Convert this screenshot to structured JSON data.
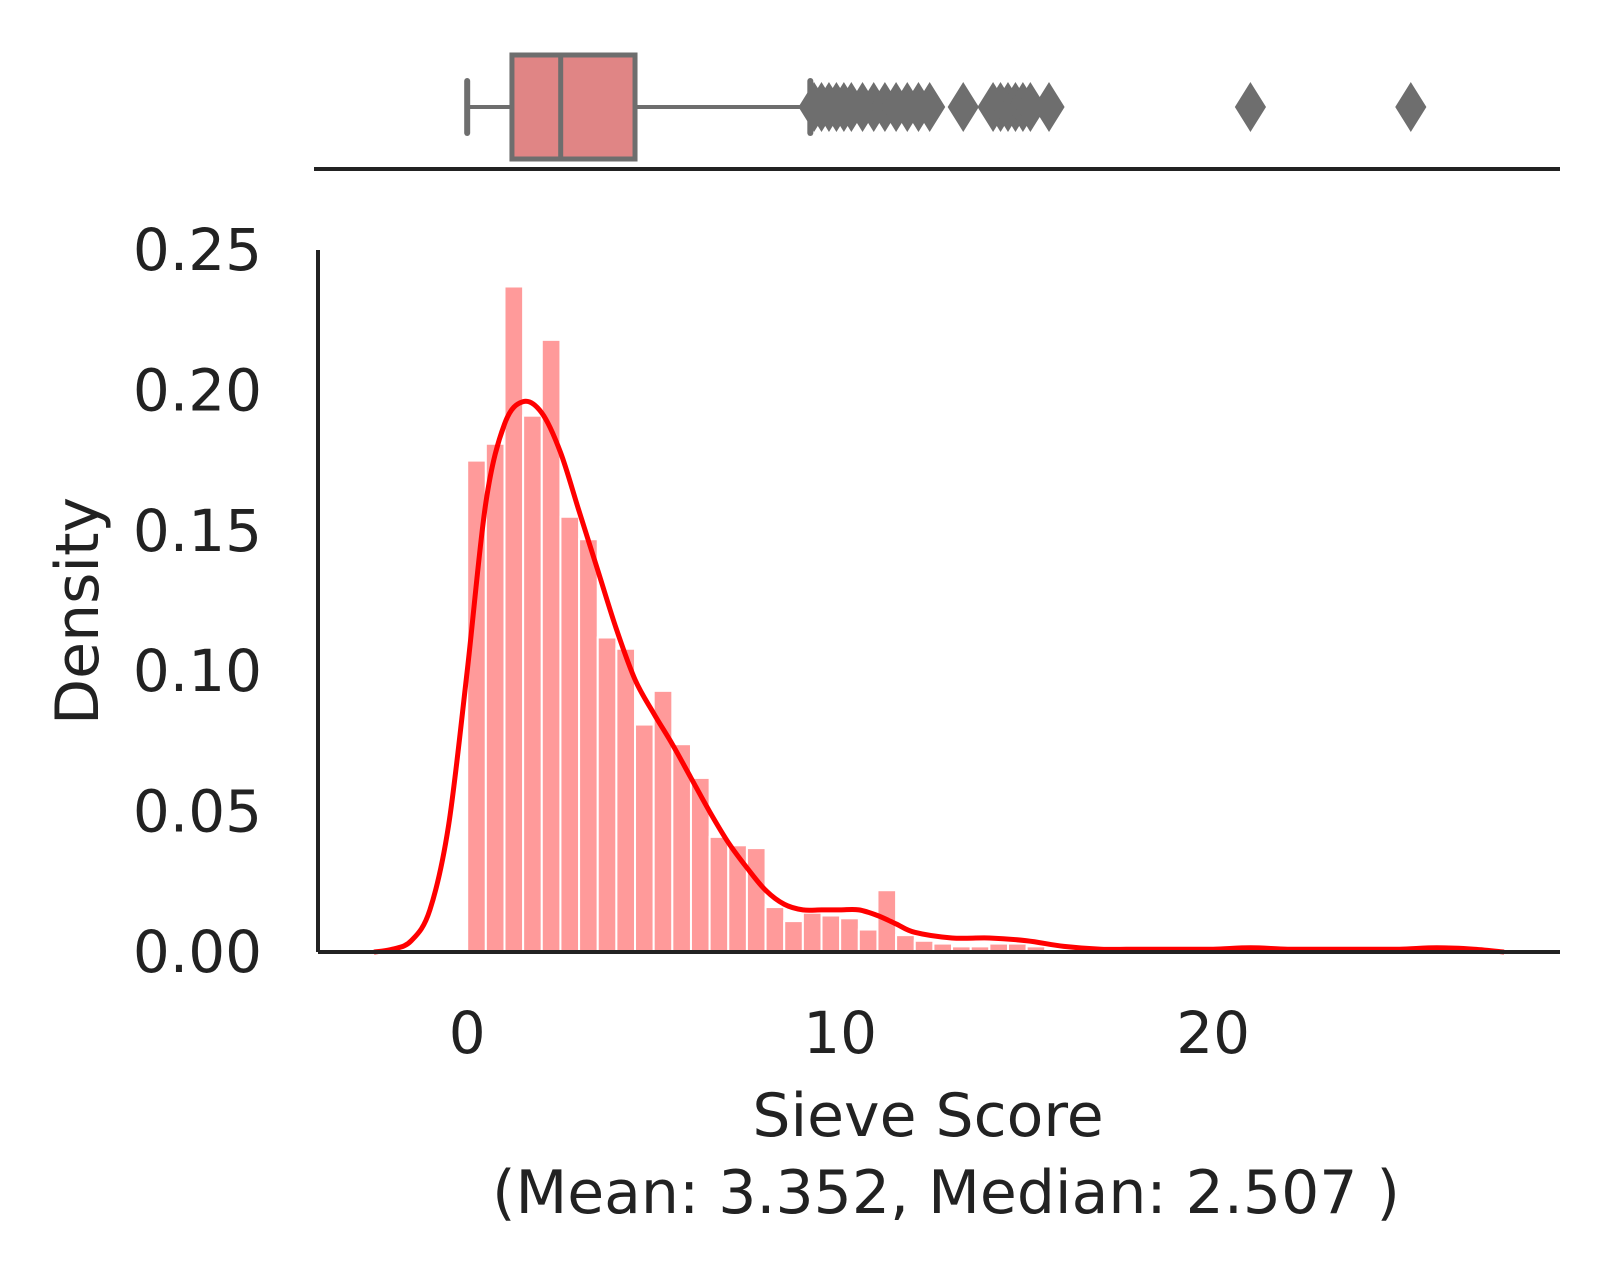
{
  "chart_data": {
    "type": "histogram",
    "title": "",
    "xlabel": "Sieve Score",
    "xlabel_stats": "(Mean: 3.352, Median: 2.507 )",
    "ylabel": "Density",
    "xlim": [
      -4,
      29.3
    ],
    "ylim": [
      0,
      0.25
    ],
    "x_ticks": [
      0,
      10,
      20
    ],
    "y_ticks": [
      "0.00",
      "0.05",
      "0.10",
      "0.15",
      "0.20",
      "0.25"
    ],
    "bar_color": "#ff9a9a",
    "kde_color": "#ff0000",
    "box_color": "#e08585",
    "box_edge_color": "#6e6e6e",
    "axis_color": "#222222",
    "histogram": {
      "bin_width": 0.5,
      "bins": [
        {
          "start": 0.0,
          "density": 0.175
        },
        {
          "start": 0.5,
          "density": 0.181
        },
        {
          "start": 1.0,
          "density": 0.237
        },
        {
          "start": 1.5,
          "density": 0.191
        },
        {
          "start": 2.0,
          "density": 0.218
        },
        {
          "start": 2.5,
          "density": 0.155
        },
        {
          "start": 3.0,
          "density": 0.147
        },
        {
          "start": 3.5,
          "density": 0.112
        },
        {
          "start": 4.0,
          "density": 0.108
        },
        {
          "start": 4.5,
          "density": 0.081
        },
        {
          "start": 5.0,
          "density": 0.093
        },
        {
          "start": 5.5,
          "density": 0.074
        },
        {
          "start": 6.0,
          "density": 0.062
        },
        {
          "start": 6.5,
          "density": 0.041
        },
        {
          "start": 7.0,
          "density": 0.038
        },
        {
          "start": 7.5,
          "density": 0.037
        },
        {
          "start": 8.0,
          "density": 0.016
        },
        {
          "start": 8.5,
          "density": 0.011
        },
        {
          "start": 9.0,
          "density": 0.014
        },
        {
          "start": 9.5,
          "density": 0.013
        },
        {
          "start": 10.0,
          "density": 0.012
        },
        {
          "start": 10.5,
          "density": 0.008
        },
        {
          "start": 11.0,
          "density": 0.022
        },
        {
          "start": 11.5,
          "density": 0.006
        },
        {
          "start": 12.0,
          "density": 0.004
        },
        {
          "start": 12.5,
          "density": 0.003
        },
        {
          "start": 13.0,
          "density": 0.002
        },
        {
          "start": 13.5,
          "density": 0.002
        },
        {
          "start": 14.0,
          "density": 0.003
        },
        {
          "start": 14.5,
          "density": 0.003
        },
        {
          "start": 15.0,
          "density": 0.002
        },
        {
          "start": 15.5,
          "density": 0.001
        }
      ]
    },
    "kde": {
      "x": [
        -2.5,
        -2.0,
        -1.5,
        -1.0,
        -0.5,
        0.0,
        0.5,
        1.0,
        1.5,
        2.0,
        2.5,
        3.0,
        3.5,
        4.0,
        4.5,
        5.0,
        5.5,
        6.0,
        6.5,
        7.0,
        7.5,
        8.0,
        8.5,
        9.0,
        9.5,
        10.0,
        10.5,
        11.0,
        11.5,
        12.0,
        13.0,
        14.0,
        15.0,
        16.0,
        17.0,
        18.0,
        19.0,
        20.0,
        21.0,
        22.0,
        23.0,
        24.0,
        25.0,
        26.0,
        27.0,
        27.8
      ],
      "y": [
        0.0,
        0.001,
        0.004,
        0.015,
        0.045,
        0.1,
        0.16,
        0.188,
        0.196,
        0.192,
        0.178,
        0.157,
        0.136,
        0.115,
        0.097,
        0.085,
        0.074,
        0.062,
        0.05,
        0.039,
        0.03,
        0.022,
        0.017,
        0.015,
        0.015,
        0.015,
        0.015,
        0.013,
        0.01,
        0.007,
        0.005,
        0.005,
        0.004,
        0.002,
        0.001,
        0.001,
        0.001,
        0.001,
        0.0015,
        0.001,
        0.001,
        0.001,
        0.001,
        0.0015,
        0.001,
        0.0
      ]
    },
    "boxplot": {
      "whisker_low": 0.0,
      "q1": 1.2,
      "median": 2.507,
      "q3": 4.5,
      "whisker_high": 9.2,
      "outliers": [
        9.3,
        9.5,
        9.7,
        9.9,
        10.1,
        10.3,
        10.6,
        10.9,
        11.2,
        11.5,
        11.8,
        12.1,
        12.4,
        13.3,
        14.1,
        14.3,
        14.5,
        14.7,
        14.9,
        15.1,
        15.6,
        21.0,
        25.3
      ]
    }
  }
}
